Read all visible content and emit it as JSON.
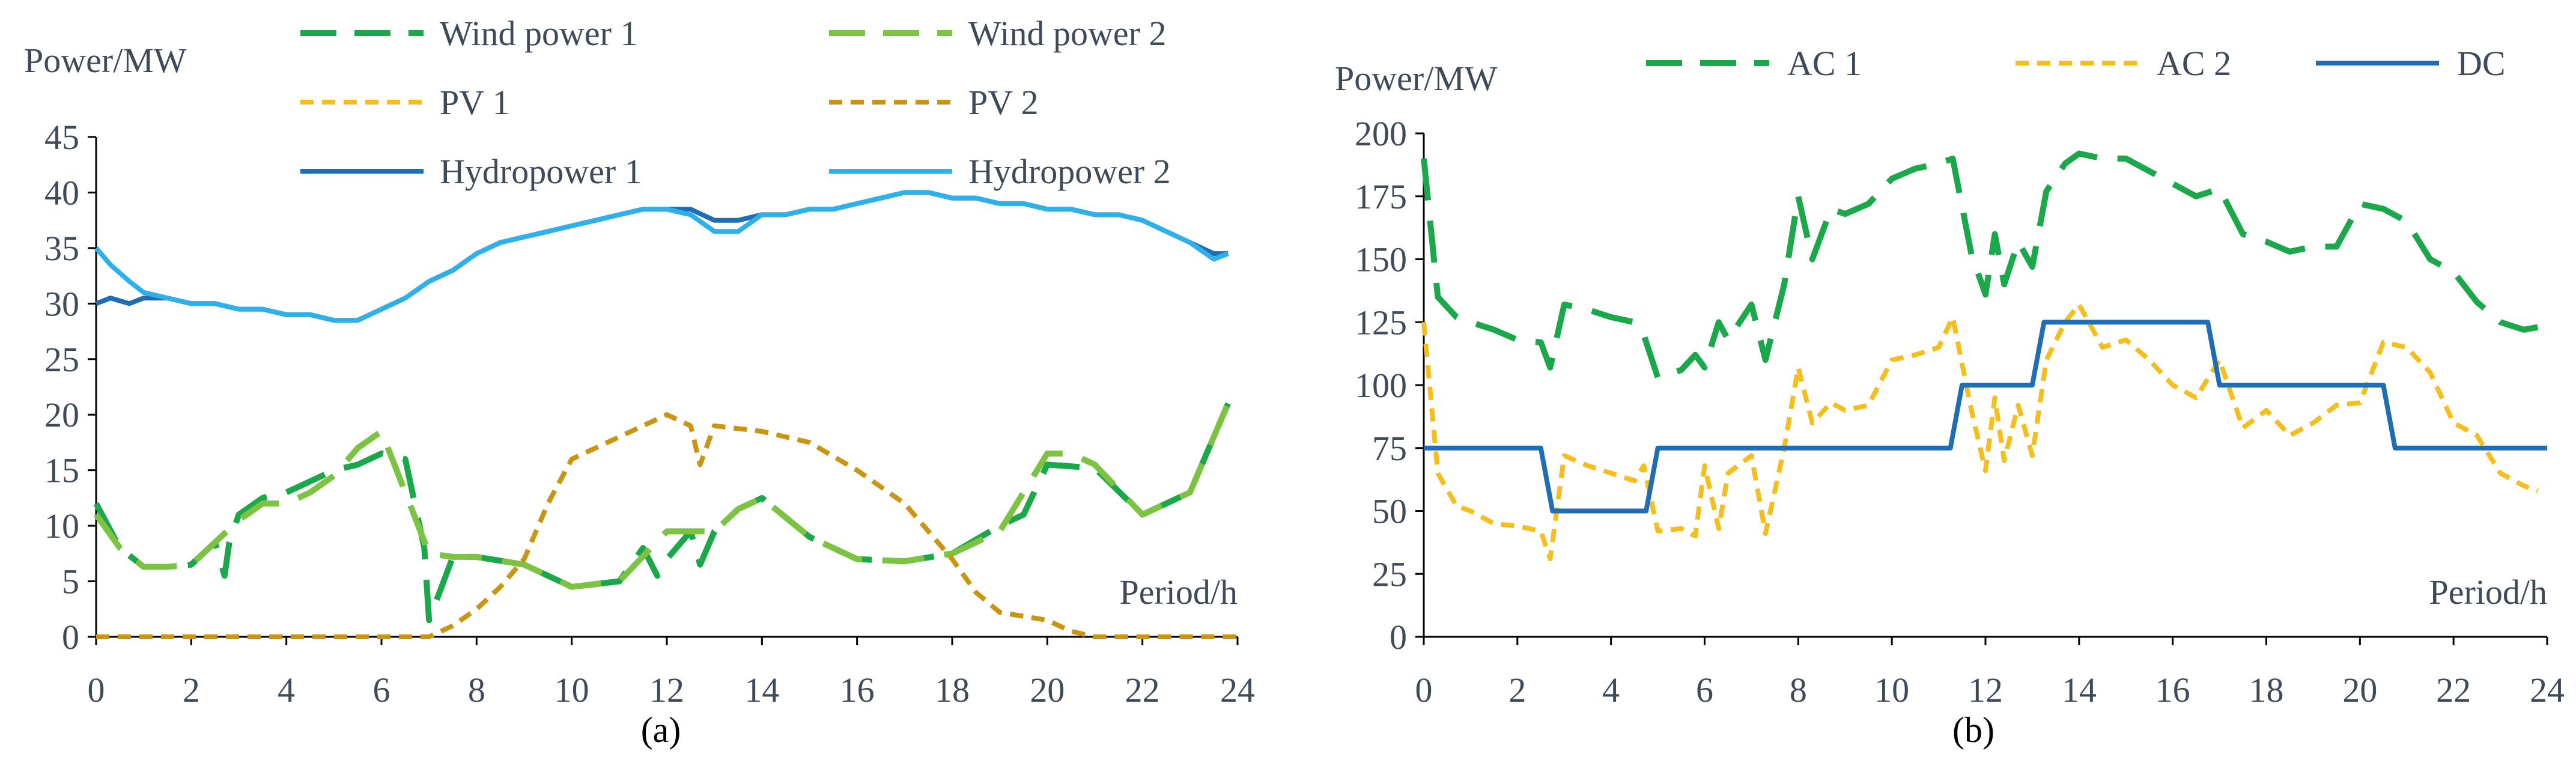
{
  "chart_data": [
    {
      "type": "line",
      "caption": "(a)",
      "ylabel": "Power/MW",
      "xlabel": "Period/h",
      "xlim": [
        0,
        24
      ],
      "ylim": [
        0,
        45
      ],
      "xticks": [
        0,
        2,
        4,
        6,
        8,
        10,
        12,
        14,
        16,
        18,
        20,
        22,
        24
      ],
      "yticks": [
        0,
        5,
        10,
        15,
        20,
        25,
        30,
        35,
        40,
        45
      ],
      "legend_position": "top",
      "series": [
        {
          "name": "Wind power 1",
          "color": "#1aa84a",
          "dash": "long-dash",
          "x": [
            0,
            0.5,
            1,
            1.5,
            2,
            2.5,
            2.7,
            2.8,
            3,
            3.5,
            4,
            4.5,
            5,
            5.5,
            6,
            6.5,
            6.9,
            7,
            7.5,
            8,
            9,
            10,
            11,
            11.5,
            11.8,
            12,
            12.5,
            12.7,
            13,
            13.5,
            14,
            15,
            16,
            17,
            18,
            19,
            19.5,
            20,
            21,
            22,
            23,
            23.8
          ],
          "y": [
            12,
            8,
            6.3,
            6.3,
            6.5,
            8.5,
            5.5,
            8.5,
            11,
            12.5,
            13,
            14,
            15,
            15.5,
            16.5,
            16,
            8,
            1.5,
            7.2,
            7.2,
            6.5,
            4.5,
            5,
            8,
            5.5,
            7,
            9.5,
            6.5,
            9.5,
            11.5,
            12.5,
            9,
            7,
            6.8,
            7.5,
            10,
            11,
            15.5,
            15.2,
            11,
            13,
            21
          ]
        },
        {
          "name": "Wind power 2",
          "color": "#7cc243",
          "dash": "long-dash",
          "x": [
            0,
            0.5,
            1,
            1.5,
            2,
            2.5,
            3,
            3.5,
            4,
            4.5,
            5,
            5.5,
            6,
            6.5,
            7,
            7.5,
            8,
            9,
            10,
            11,
            12,
            12.5,
            13,
            13.5,
            14,
            15,
            16,
            17,
            18,
            19,
            20,
            20.5,
            21,
            22,
            23,
            23.8
          ],
          "y": [
            11,
            8,
            6.3,
            6.3,
            6.5,
            8.5,
            10.5,
            12,
            12,
            13,
            14.5,
            17,
            18.5,
            13,
            7.5,
            7.2,
            7.2,
            6.5,
            4.5,
            5,
            9.5,
            9.5,
            9.5,
            11.5,
            12.5,
            9,
            7,
            6.8,
            7.5,
            9.5,
            16.5,
            16.5,
            15.5,
            11,
            13,
            21
          ]
        },
        {
          "name": "PV 1",
          "color": "#f5be1e",
          "dash": "short-dash",
          "x": [
            0,
            7,
            7.5,
            8,
            8.5,
            9,
            9.5,
            10,
            11,
            12,
            12.5,
            12.7,
            13,
            14,
            15,
            16,
            17,
            18,
            18.5,
            19,
            20,
            20.5,
            21,
            24
          ],
          "y": [
            0,
            0,
            1,
            2.5,
            4.5,
            7,
            12,
            16,
            18,
            20,
            19,
            15.5,
            19,
            18.5,
            17.5,
            15,
            12,
            7,
            4,
            2.2,
            1.5,
            0.5,
            0,
            0
          ]
        },
        {
          "name": "PV 2",
          "color": "#c99515",
          "dash": "short-dash",
          "x": [
            0,
            7,
            7.5,
            8,
            8.5,
            9,
            9.5,
            10,
            11,
            12,
            12.5,
            12.7,
            13,
            14,
            15,
            16,
            17,
            18,
            18.5,
            19,
            20,
            20.5,
            21,
            24
          ],
          "y": [
            0,
            0,
            1,
            2.5,
            4.5,
            7,
            12,
            16,
            18,
            20,
            19,
            15.5,
            19,
            18.5,
            17.5,
            15,
            12,
            7,
            4,
            2.2,
            1.5,
            0.5,
            0,
            0
          ]
        },
        {
          "name": "Hydropower 1",
          "color": "#1f6db5",
          "dash": "solid",
          "x": [
            0,
            0.3,
            0.7,
            1,
            1.5,
            2,
            2.5,
            3,
            3.5,
            4,
            4.5,
            5,
            5.5,
            6,
            6.5,
            7,
            7.5,
            8,
            8.5,
            9,
            9.5,
            10,
            10.5,
            11,
            11.5,
            12,
            12.5,
            13,
            13.5,
            14,
            14.5,
            15,
            15.5,
            16,
            16.5,
            17,
            17.5,
            18,
            18.5,
            19,
            19.5,
            20,
            20.5,
            21,
            21.5,
            22,
            22.5,
            23,
            23.5,
            23.8
          ],
          "y": [
            30,
            30.5,
            30,
            30.5,
            30.5,
            30,
            30,
            29.5,
            29.5,
            29,
            29,
            28.5,
            28.5,
            29.5,
            30.5,
            32,
            33,
            34.5,
            35.5,
            36,
            36.5,
            37,
            37.5,
            38,
            38.5,
            38.5,
            38.5,
            37.5,
            37.5,
            38,
            38,
            38.5,
            38.5,
            39,
            39.5,
            40,
            40,
            39.5,
            39.5,
            39,
            39,
            38.5,
            38.5,
            38,
            38,
            37.5,
            36.5,
            35.5,
            34.5,
            34.5
          ]
        },
        {
          "name": "Hydropower 2",
          "color": "#2fb0e8",
          "dash": "solid",
          "x": [
            0,
            0.3,
            0.7,
            1,
            1.5,
            2,
            2.5,
            3,
            3.5,
            4,
            4.5,
            5,
            5.5,
            6,
            6.5,
            7,
            7.5,
            8,
            8.5,
            9,
            9.5,
            10,
            10.5,
            11,
            11.5,
            12,
            12.5,
            13,
            13.5,
            14,
            14.5,
            15,
            15.5,
            16,
            16.5,
            17,
            17.5,
            18,
            18.5,
            19,
            19.5,
            20,
            20.5,
            21,
            21.5,
            22,
            22.5,
            23,
            23.5,
            23.8
          ],
          "y": [
            35,
            33.5,
            32,
            31,
            30.5,
            30,
            30,
            29.5,
            29.5,
            29,
            29,
            28.5,
            28.5,
            29.5,
            30.5,
            32,
            33,
            34.5,
            35.5,
            36,
            36.5,
            37,
            37.5,
            38,
            38.5,
            38.5,
            38,
            36.5,
            36.5,
            38,
            38,
            38.5,
            38.5,
            39,
            39.5,
            40,
            40,
            39.5,
            39.5,
            39,
            39,
            38.5,
            38.5,
            38,
            38,
            37.5,
            36.5,
            35.5,
            34,
            34.5
          ]
        }
      ]
    },
    {
      "type": "line",
      "caption": "(b)",
      "ylabel": "Power/MW",
      "xlabel": "Period/h",
      "xlim": [
        0,
        24
      ],
      "ylim": [
        0,
        200
      ],
      "xticks": [
        0,
        2,
        4,
        6,
        8,
        10,
        12,
        14,
        16,
        18,
        20,
        22,
        24
      ],
      "yticks": [
        0,
        25,
        50,
        75,
        100,
        125,
        150,
        175,
        200
      ],
      "legend_position": "top",
      "series": [
        {
          "name": "AC 1",
          "color": "#1aa84a",
          "dash": "long-dash",
          "x": [
            0,
            0.3,
            0.7,
            1,
            1.5,
            2,
            2.5,
            2.7,
            3,
            3.5,
            4,
            4.5,
            4.7,
            5,
            5.5,
            5.8,
            6,
            6.3,
            6.5,
            7,
            7.3,
            7.7,
            8,
            8.3,
            8.7,
            9,
            9.5,
            10,
            10.5,
            11,
            11.3,
            11.7,
            12,
            12.2,
            12.4,
            12.7,
            13,
            13.3,
            13.7,
            14,
            14.5,
            15,
            15.5,
            16,
            16.5,
            17,
            17.5,
            18,
            18.5,
            19,
            19.5,
            20,
            20.5,
            21,
            21.5,
            22,
            22.5,
            23,
            23.5,
            23.8
          ],
          "y": [
            190,
            135,
            127,
            125,
            122,
            118,
            117,
            107,
            132,
            130,
            127,
            125,
            120,
            103,
            106,
            112,
            107,
            125,
            118,
            132,
            110,
            140,
            175,
            150,
            170,
            168,
            172,
            182,
            186,
            188,
            190,
            152,
            136,
            160,
            140,
            157,
            147,
            177,
            188,
            192,
            190,
            190,
            185,
            180,
            175,
            178,
            160,
            157,
            153,
            155,
            155,
            172,
            170,
            165,
            150,
            145,
            133,
            125,
            122,
            123
          ]
        },
        {
          "name": "AC 2",
          "color": "#f5be1e",
          "dash": "short-dash",
          "x": [
            0,
            0.3,
            0.7,
            1,
            1.5,
            2,
            2.5,
            2.7,
            3,
            3.5,
            4,
            4.5,
            4.7,
            5,
            5.5,
            5.8,
            6,
            6.3,
            6.5,
            7,
            7.3,
            7.7,
            8,
            8.3,
            8.7,
            9,
            9.5,
            10,
            10.5,
            11,
            11.3,
            11.7,
            12,
            12.2,
            12.4,
            12.7,
            13,
            13.3,
            13.7,
            14,
            14.5,
            15,
            15.5,
            16,
            16.5,
            17,
            17.5,
            18,
            18.5,
            19,
            19.5,
            20,
            20.5,
            21,
            21.5,
            22,
            22.5,
            23,
            23.5,
            23.8
          ],
          "y": [
            125,
            65,
            52,
            50,
            45,
            44,
            42,
            31,
            72,
            68,
            65,
            62,
            68,
            42,
            43,
            40,
            68,
            43,
            65,
            72,
            41,
            75,
            107,
            85,
            93,
            90,
            92,
            110,
            112,
            115,
            127,
            90,
            66,
            95,
            70,
            92,
            72,
            110,
            125,
            132,
            115,
            118,
            110,
            100,
            95,
            110,
            83,
            90,
            80,
            85,
            92,
            93,
            117,
            115,
            105,
            85,
            80,
            65,
            60,
            58
          ]
        },
        {
          "name": "DC",
          "color": "#1f6db5",
          "dash": "solid",
          "x": [
            0,
            2.5,
            2.75,
            4.75,
            5,
            11.25,
            11.5,
            13,
            13.25,
            16.75,
            17,
            20.5,
            20.75,
            24
          ],
          "y": [
            75,
            75,
            50,
            50,
            75,
            75,
            100,
            100,
            125,
            125,
            100,
            100,
            75,
            75
          ]
        }
      ]
    }
  ]
}
